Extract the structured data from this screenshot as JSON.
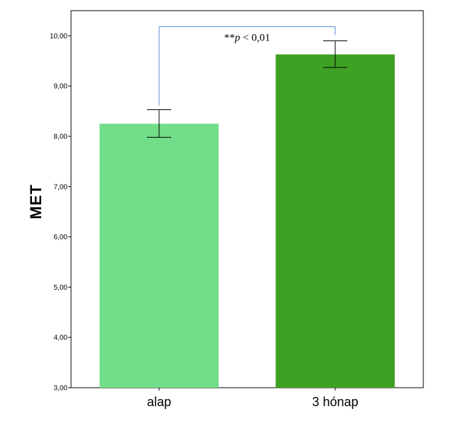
{
  "chart_data": {
    "type": "bar",
    "categories": [
      "alap",
      "3 hónap"
    ],
    "values": [
      8.25,
      9.63
    ],
    "error_low": [
      7.98,
      9.37
    ],
    "error_high": [
      8.53,
      9.9
    ],
    "ylabel": "MET",
    "xlabel": "",
    "ylim": [
      3,
      10.5
    ],
    "yticks": [
      "3,00",
      "4,00",
      "5,00",
      "6,00",
      "7,00",
      "8,00",
      "9,00",
      "10,00"
    ],
    "significance": {
      "label_stars": "**",
      "label_p": "p",
      "label_rest": " < 0,01",
      "bracket_top": 10.18
    },
    "colors": [
      "#72dd88",
      "#3fa124"
    ],
    "bracket_color": "#5b8bd0",
    "grid": false
  }
}
